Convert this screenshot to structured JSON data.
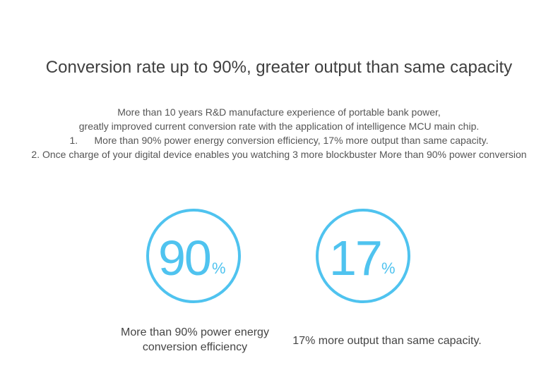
{
  "header": {
    "title": "Conversion rate up to 90%, greater output than same capacity"
  },
  "intro": {
    "lines": [
      "More than 10 years R&D manufacture experience of portable bank power,",
      "greatly improved current conversion rate with the application of intelligence MCU main chip.",
      "1.      More than 90% power energy conversion efficiency, 17% more output than same capacity.",
      "2. Once charge of your digital device enables you watching 3 more blockbuster More than 90% power conversion"
    ]
  },
  "stats": [
    {
      "number": "90",
      "unit": "%",
      "caption": [
        "More than 90% power energy",
        "conversion efficiency"
      ]
    },
    {
      "number": "17",
      "unit": "%",
      "caption": [
        "17% more output than same capacity."
      ]
    }
  ]
}
